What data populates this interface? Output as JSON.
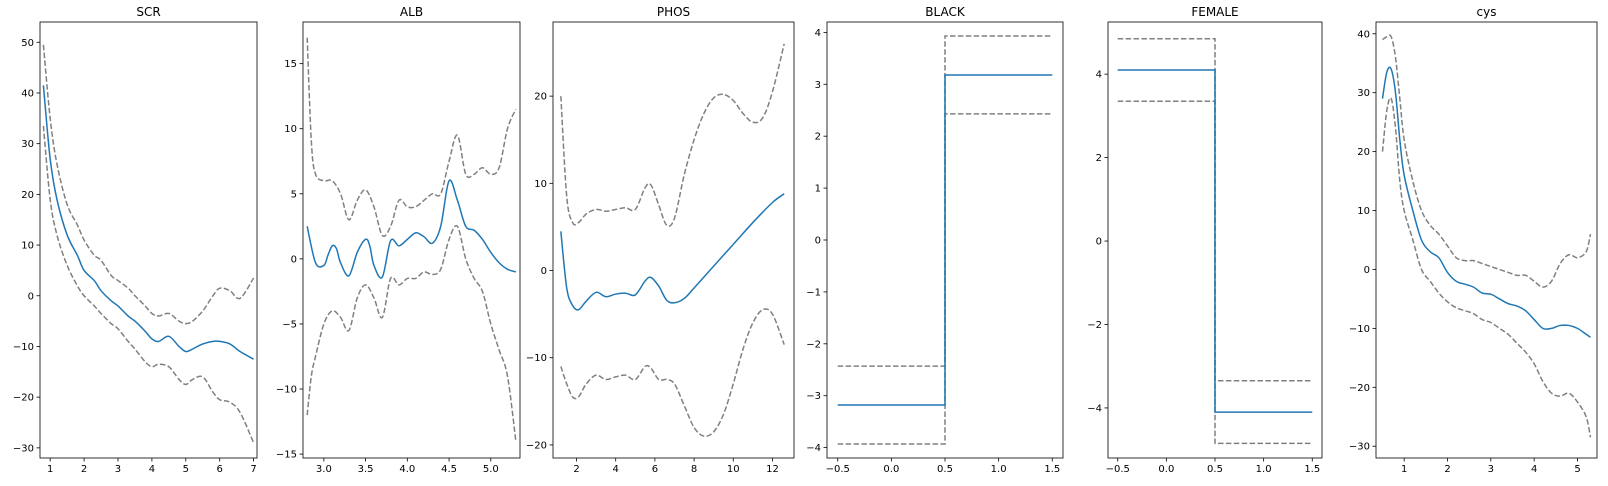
{
  "chart_data": [
    {
      "type": "line",
      "title": "SCR",
      "xlim": [
        0.7,
        7.1
      ],
      "ylim": [
        -32,
        54
      ],
      "xticks": [
        1,
        2,
        3,
        4,
        5,
        6,
        7
      ],
      "xtick_labels": [
        "1",
        "2",
        "3",
        "4",
        "5",
        "6",
        "7"
      ],
      "yticks": [
        -30,
        -20,
        -10,
        0,
        10,
        20,
        30,
        40,
        50
      ],
      "ytick_labels": [
        "−30",
        "−20",
        "−10",
        "0",
        "10",
        "20",
        "30",
        "40",
        "50"
      ],
      "series": [
        {
          "role": "estimate",
          "color": "#1f77b4",
          "dashed": false,
          "x": [
            0.8,
            1.0,
            1.2,
            1.5,
            1.8,
            2.0,
            2.3,
            2.5,
            2.8,
            3.0,
            3.3,
            3.5,
            3.8,
            4.0,
            4.2,
            4.5,
            4.8,
            5.0,
            5.2,
            5.5,
            5.8,
            6.0,
            6.3,
            6.6,
            7.0
          ],
          "y": [
            41.5,
            27,
            19,
            12,
            8,
            5,
            3,
            1,
            -1,
            -2,
            -4,
            -5,
            -7,
            -8.5,
            -9,
            -8,
            -10,
            -11,
            -10.5,
            -9.5,
            -9,
            -9,
            -9.5,
            -11,
            -12.5
          ]
        },
        {
          "role": "upper",
          "color": "#808080",
          "dashed": true,
          "x": [
            0.8,
            1.0,
            1.2,
            1.5,
            1.8,
            2.0,
            2.3,
            2.5,
            2.8,
            3.0,
            3.3,
            3.5,
            3.8,
            4.0,
            4.2,
            4.5,
            4.8,
            5.0,
            5.2,
            5.5,
            5.8,
            6.0,
            6.3,
            6.6,
            7.0
          ],
          "y": [
            49.5,
            35,
            26,
            18,
            14,
            11,
            8,
            7,
            4,
            3,
            1.5,
            0,
            -2,
            -3.5,
            -4,
            -3.5,
            -5,
            -5.5,
            -5,
            -3,
            0,
            1.5,
            1,
            -0.5,
            3.5
          ]
        },
        {
          "role": "lower",
          "color": "#808080",
          "dashed": true,
          "x": [
            0.8,
            1.0,
            1.2,
            1.5,
            1.8,
            2.0,
            2.3,
            2.5,
            2.8,
            3.0,
            3.3,
            3.5,
            3.8,
            4.0,
            4.2,
            4.5,
            4.8,
            5.0,
            5.2,
            5.5,
            5.8,
            6.0,
            6.3,
            6.6,
            7.0
          ],
          "y": [
            33.5,
            19,
            12,
            6,
            2,
            0,
            -2,
            -3.5,
            -5.5,
            -6.5,
            -9,
            -10.5,
            -13,
            -14,
            -13.5,
            -14,
            -16.5,
            -17.5,
            -16.5,
            -16,
            -19,
            -20.5,
            -21,
            -23,
            -29
          ]
        }
      ]
    },
    {
      "type": "line",
      "title": "ALB",
      "xlim": [
        2.75,
        5.35
      ],
      "ylim": [
        -15.3,
        18.2
      ],
      "xticks": [
        3.0,
        3.5,
        4.0,
        4.5,
        5.0
      ],
      "xtick_labels": [
        "3.0",
        "3.5",
        "4.0",
        "4.5",
        "5.0"
      ],
      "yticks": [
        -15,
        -10,
        -5,
        0,
        5,
        10,
        15
      ],
      "ytick_labels": [
        "−15",
        "−10",
        "−5",
        "0",
        "5",
        "10",
        "15"
      ],
      "series": [
        {
          "role": "estimate",
          "color": "#1f77b4",
          "dashed": false,
          "x": [
            2.8,
            2.9,
            3.0,
            3.05,
            3.1,
            3.15,
            3.2,
            3.3,
            3.4,
            3.5,
            3.55,
            3.6,
            3.7,
            3.8,
            3.9,
            4.0,
            4.1,
            4.2,
            4.3,
            4.4,
            4.5,
            4.6,
            4.7,
            4.8,
            4.9,
            5.0,
            5.1,
            5.2,
            5.3
          ],
          "y": [
            2.5,
            -0.3,
            -0.5,
            0.3,
            1.0,
            0.8,
            -0.3,
            -1.3,
            0.5,
            1.5,
            1.0,
            -0.5,
            -1.4,
            1.4,
            1.0,
            1.5,
            2.0,
            1.7,
            1.2,
            2.5,
            6.0,
            4.5,
            2.5,
            2.2,
            1.5,
            0.5,
            -0.3,
            -0.8,
            -1.0
          ],
          "x_dense": true
        },
        {
          "role": "upper",
          "color": "#808080",
          "dashed": true,
          "x": [
            2.8,
            2.85,
            2.9,
            3.0,
            3.1,
            3.2,
            3.3,
            3.4,
            3.5,
            3.6,
            3.7,
            3.8,
            3.9,
            4.0,
            4.1,
            4.2,
            4.3,
            4.4,
            4.5,
            4.6,
            4.7,
            4.8,
            4.9,
            5.0,
            5.1,
            5.2,
            5.3
          ],
          "y": [
            17,
            9,
            6.5,
            6,
            6,
            5,
            3,
            4.5,
            5.3,
            4,
            1.8,
            2.5,
            4.5,
            4,
            4,
            4.5,
            5,
            5,
            7.5,
            9.5,
            6.5,
            6.5,
            7,
            6.5,
            7,
            10,
            11.5
          ]
        },
        {
          "role": "lower",
          "color": "#808080",
          "dashed": true,
          "x": [
            2.8,
            2.85,
            2.9,
            3.0,
            3.1,
            3.2,
            3.3,
            3.4,
            3.5,
            3.6,
            3.7,
            3.8,
            3.9,
            4.0,
            4.1,
            4.2,
            4.3,
            4.4,
            4.5,
            4.6,
            4.7,
            4.8,
            4.9,
            5.0,
            5.1,
            5.2,
            5.3
          ],
          "y": [
            -12,
            -9,
            -7.5,
            -5,
            -4,
            -4.5,
            -5.5,
            -3,
            -2,
            -3,
            -4.5,
            -1.5,
            -2,
            -1.5,
            -1.5,
            -1,
            -1.2,
            -0.8,
            1.5,
            2.5,
            0,
            -1.5,
            -2.5,
            -5,
            -7,
            -9,
            -14
          ]
        }
      ]
    },
    {
      "type": "line",
      "title": "PHOS",
      "xlim": [
        0.8,
        13.1
      ],
      "ylim": [
        -21.5,
        28.5
      ],
      "xticks": [
        2,
        4,
        6,
        8,
        10,
        12
      ],
      "xtick_labels": [
        "2",
        "4",
        "6",
        "8",
        "10",
        "12"
      ],
      "yticks": [
        -20,
        -10,
        0,
        10,
        20
      ],
      "ytick_labels": [
        "−20",
        "−10",
        "0",
        "10",
        "20"
      ],
      "series": [
        {
          "role": "estimate",
          "color": "#1f77b4",
          "dashed": false,
          "x": [
            1.2,
            1.5,
            1.8,
            2.1,
            2.5,
            3.0,
            3.5,
            4.0,
            4.5,
            5.0,
            5.5,
            5.8,
            6.2,
            6.6,
            7.0,
            7.5,
            8.0,
            9.0,
            10.0,
            11.0,
            12.0,
            12.6
          ],
          "y": [
            4.5,
            -2,
            -4,
            -4.5,
            -3.5,
            -2.5,
            -3,
            -2.7,
            -2.6,
            -2.8,
            -1.2,
            -0.8,
            -1.8,
            -3.4,
            -3.7,
            -3.2,
            -2.0,
            0.5,
            3.0,
            5.5,
            7.8,
            8.8
          ]
        },
        {
          "role": "upper",
          "color": "#808080",
          "dashed": true,
          "x": [
            1.2,
            1.5,
            1.8,
            2.1,
            2.5,
            3.0,
            3.5,
            4.0,
            4.5,
            5.0,
            5.5,
            5.8,
            6.2,
            6.6,
            7.0,
            7.5,
            8.0,
            8.5,
            9.0,
            9.5,
            10.0,
            10.5,
            11.0,
            11.5,
            12.0,
            12.6
          ],
          "y": [
            20,
            8.5,
            5.5,
            5.5,
            6.5,
            7,
            6.8,
            7,
            7.2,
            7.0,
            9.5,
            9.8,
            7.5,
            5.2,
            6,
            11,
            15,
            18,
            19.8,
            20.2,
            19.5,
            18,
            17,
            17.5,
            20.5,
            26
          ]
        },
        {
          "role": "lower",
          "color": "#808080",
          "dashed": true,
          "x": [
            1.2,
            1.5,
            1.8,
            2.1,
            2.5,
            3.0,
            3.5,
            4.0,
            4.5,
            5.0,
            5.5,
            5.8,
            6.2,
            6.6,
            7.0,
            7.5,
            8.0,
            8.5,
            9.0,
            9.5,
            10.0,
            10.5,
            11.0,
            11.5,
            12.0,
            12.6
          ],
          "y": [
            -11,
            -13,
            -14.5,
            -14.5,
            -13,
            -12,
            -12.5,
            -12.2,
            -12,
            -12.5,
            -11,
            -11.2,
            -12.5,
            -12.5,
            -13,
            -15.5,
            -18,
            -19,
            -18.5,
            -16.5,
            -13,
            -9,
            -6,
            -4.5,
            -5,
            -8.5
          ]
        }
      ]
    },
    {
      "type": "line",
      "title": "BLACK",
      "xlim": [
        -0.6,
        1.6
      ],
      "ylim": [
        -4.2,
        4.2
      ],
      "xticks": [
        -0.5,
        0.0,
        0.5,
        1.0,
        1.5
      ],
      "xtick_labels": [
        "−0.5",
        "0.0",
        "0.5",
        "1.0",
        "1.5"
      ],
      "yticks": [
        -4,
        -3,
        -2,
        -1,
        0,
        1,
        2,
        3,
        4
      ],
      "ytick_labels": [
        "−4",
        "−3",
        "−2",
        "−1",
        "0",
        "1",
        "2",
        "3",
        "4"
      ],
      "series": [
        {
          "role": "estimate",
          "color": "#1f77b4",
          "dashed": false,
          "x": [
            -0.5,
            0.5,
            0.5,
            1.5
          ],
          "y": [
            -3.18,
            -3.18,
            3.18,
            3.18
          ]
        },
        {
          "role": "upper",
          "color": "#808080",
          "dashed": true,
          "x": [
            -0.5,
            0.5,
            0.5,
            1.5
          ],
          "y": [
            -2.43,
            -2.43,
            3.93,
            3.93
          ]
        },
        {
          "role": "lower",
          "color": "#808080",
          "dashed": true,
          "x": [
            -0.5,
            0.5,
            0.5,
            1.5
          ],
          "y": [
            -3.93,
            -3.93,
            2.43,
            2.43
          ]
        }
      ]
    },
    {
      "type": "line",
      "title": "FEMALE",
      "xlim": [
        -0.6,
        1.6
      ],
      "ylim": [
        -5.2,
        5.25
      ],
      "xticks": [
        -0.5,
        0.0,
        0.5,
        1.0,
        1.5
      ],
      "xtick_labels": [
        "−0.5",
        "0.0",
        "0.5",
        "1.0",
        "1.5"
      ],
      "yticks": [
        -4,
        -2,
        0,
        2,
        4
      ],
      "ytick_labels": [
        "−4",
        "−2",
        "0",
        "2",
        "4"
      ],
      "series": [
        {
          "role": "estimate",
          "color": "#1f77b4",
          "dashed": false,
          "x": [
            -0.5,
            0.5,
            0.5,
            1.5
          ],
          "y": [
            4.1,
            4.1,
            -4.1,
            -4.1
          ]
        },
        {
          "role": "upper",
          "color": "#808080",
          "dashed": true,
          "x": [
            -0.5,
            0.5,
            0.5,
            1.5
          ],
          "y": [
            4.85,
            4.85,
            -3.35,
            -3.35
          ]
        },
        {
          "role": "lower",
          "color": "#808080",
          "dashed": true,
          "x": [
            -0.5,
            0.5,
            0.5,
            1.5
          ],
          "y": [
            3.35,
            3.35,
            -4.85,
            -4.85
          ]
        }
      ]
    },
    {
      "type": "line",
      "title": "cys",
      "xlim": [
        0.35,
        5.45
      ],
      "ylim": [
        -32,
        42
      ],
      "xticks": [
        1,
        2,
        3,
        4,
        5
      ],
      "xtick_labels": [
        "1",
        "2",
        "3",
        "4",
        "5"
      ],
      "yticks": [
        -30,
        -20,
        -10,
        0,
        10,
        20,
        30,
        40
      ],
      "ytick_labels": [
        "−30",
        "−20",
        "−10",
        "0",
        "10",
        "20",
        "30",
        "40"
      ],
      "series": [
        {
          "role": "estimate",
          "color": "#1f77b4",
          "dashed": false,
          "x": [
            0.5,
            0.6,
            0.7,
            0.8,
            0.9,
            1.0,
            1.2,
            1.4,
            1.6,
            1.8,
            2.0,
            2.2,
            2.4,
            2.6,
            2.8,
            3.0,
            3.2,
            3.4,
            3.6,
            3.8,
            4.0,
            4.2,
            4.4,
            4.6,
            4.8,
            5.0,
            5.2,
            5.3
          ],
          "y": [
            29,
            33.5,
            34,
            30,
            22,
            16,
            10,
            5,
            3,
            2,
            -0.5,
            -2,
            -2.5,
            -3,
            -4,
            -4.2,
            -5,
            -5.8,
            -6.2,
            -7,
            -8.5,
            -10,
            -10,
            -9.5,
            -9.5,
            -10,
            -11,
            -11.5
          ]
        },
        {
          "role": "upper",
          "color": "#808080",
          "dashed": true,
          "x": [
            0.5,
            0.6,
            0.7,
            0.8,
            0.9,
            1.0,
            1.2,
            1.4,
            1.6,
            1.8,
            2.0,
            2.2,
            2.4,
            2.6,
            2.8,
            3.0,
            3.2,
            3.4,
            3.6,
            3.8,
            4.0,
            4.2,
            4.4,
            4.6,
            4.8,
            5.0,
            5.2,
            5.3
          ],
          "y": [
            39,
            39.5,
            39.5,
            36,
            29,
            22,
            15,
            10,
            7.5,
            6,
            4,
            2,
            1.5,
            1.5,
            1,
            0.5,
            0,
            -0.5,
            -1,
            -1,
            -2,
            -3,
            -2,
            1,
            2.5,
            2,
            3,
            6
          ]
        },
        {
          "role": "lower",
          "color": "#808080",
          "dashed": true,
          "x": [
            0.5,
            0.6,
            0.7,
            0.8,
            0.9,
            1.0,
            1.2,
            1.4,
            1.6,
            1.8,
            2.0,
            2.2,
            2.4,
            2.6,
            2.8,
            3.0,
            3.2,
            3.4,
            3.6,
            3.8,
            4.0,
            4.2,
            4.4,
            4.6,
            4.8,
            5.0,
            5.2,
            5.3
          ],
          "y": [
            20,
            27,
            29,
            24,
            15,
            10,
            5,
            0,
            -2,
            -4,
            -5.5,
            -6.5,
            -7,
            -7.5,
            -8.5,
            -9,
            -10,
            -11,
            -12.5,
            -14,
            -16,
            -19,
            -21,
            -21.5,
            -21,
            -22.5,
            -25,
            -28.5
          ]
        }
      ]
    }
  ]
}
